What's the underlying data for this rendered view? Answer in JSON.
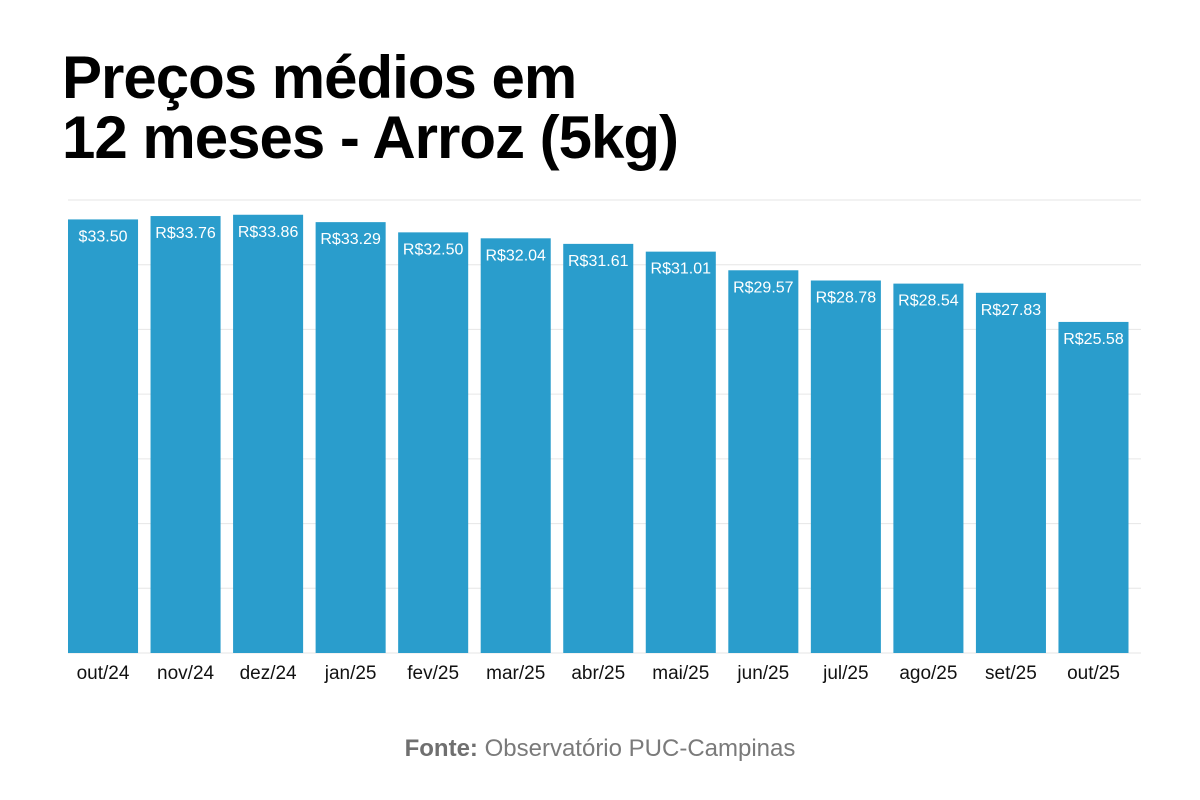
{
  "title_line1": "Preços médios em",
  "title_line2": "12 meses - Arroz (5kg)",
  "source_label": "Fonte:",
  "source_text": "Observatório PUC-Campinas",
  "colors": {
    "bar": "#2a9dcc",
    "grid": "#e6e6e6",
    "label": "#ffffff",
    "axis_text": "#111111"
  },
  "chart_data": {
    "type": "bar",
    "title": "Preços médios em 12 meses - Arroz (5kg)",
    "xlabel": "",
    "ylabel": "",
    "ylim": [
      0,
      35
    ],
    "grid": true,
    "categories": [
      "out/24",
      "nov/24",
      "dez/24",
      "jan/25",
      "fev/25",
      "mar/25",
      "abr/25",
      "mai/25",
      "jun/25",
      "jul/25",
      "ago/25",
      "set/25",
      "out/25"
    ],
    "values": [
      33.5,
      33.76,
      33.86,
      33.29,
      32.5,
      32.04,
      31.61,
      31.01,
      29.57,
      28.78,
      28.54,
      27.83,
      25.58
    ],
    "data_labels": [
      "$33.50",
      "R$33.76",
      "R$33.86",
      "R$33.29",
      "R$32.50",
      "R$32.04",
      "R$31.61",
      "R$31.01",
      "R$29.57",
      "R$28.78",
      "R$28.54",
      "R$27.83",
      "R$25.58"
    ]
  }
}
